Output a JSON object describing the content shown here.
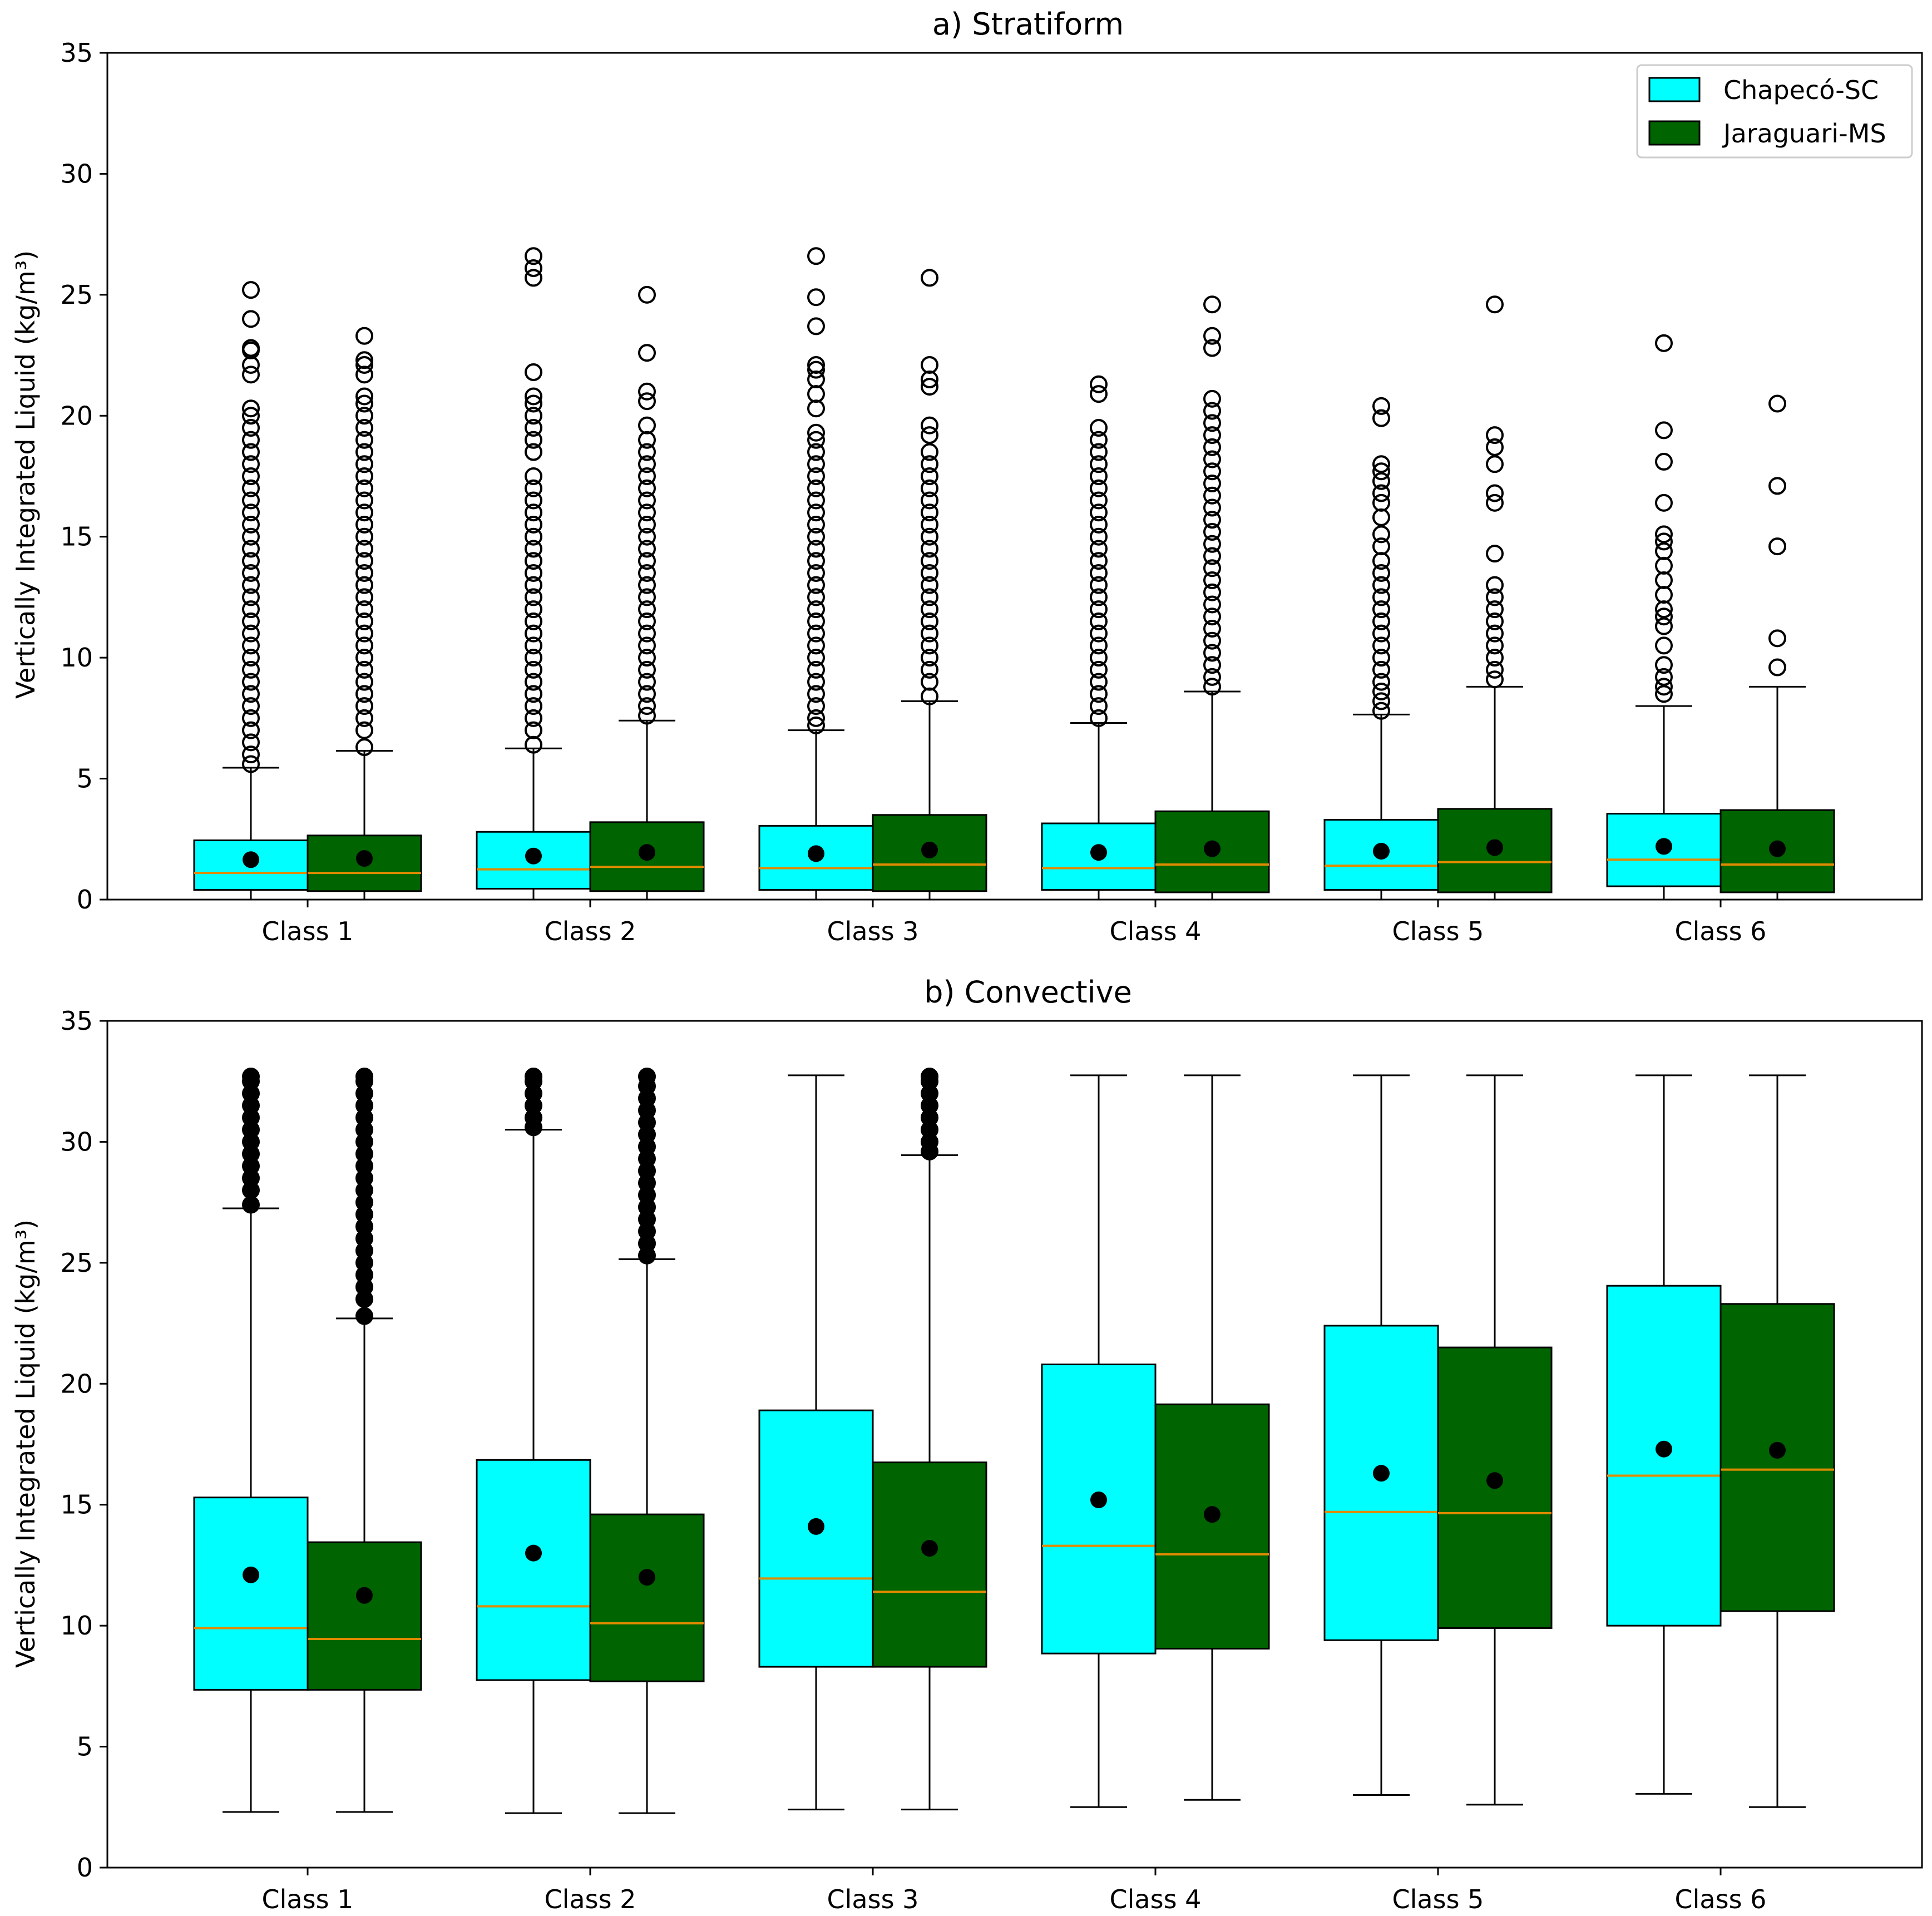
{
  "chart_data": [
    {
      "type": "box",
      "title": "a) Stratiform",
      "ylabel": "Vertically Integrated Liquid (kg/m³)",
      "xlabel": "",
      "ylim": [
        0,
        35
      ],
      "yticks": [
        0,
        5,
        10,
        15,
        20,
        25,
        30,
        35
      ],
      "categories": [
        "Class 1",
        "Class 2",
        "Class 3",
        "Class 4",
        "Class 5",
        "Class 6"
      ],
      "legend": "top-right",
      "series": [
        {
          "name": "Chapecó-SC",
          "color": "#00ffff",
          "boxes": [
            {
              "min": 0.0,
              "q1": 0.4,
              "median": 1.1,
              "q3": 2.45,
              "max": 5.45,
              "mean": 1.65,
              "fliers": [
                5.6,
                6,
                6.5,
                7,
                7.5,
                8,
                8.5,
                9,
                9.5,
                10,
                10.5,
                11,
                11.5,
                12,
                12.5,
                13,
                13.5,
                14,
                14.5,
                15,
                15.5,
                16,
                16.5,
                17,
                17.5,
                18,
                18.5,
                19,
                19.5,
                20,
                20.3,
                21.7,
                22.1,
                22.7,
                22.8,
                24,
                25.2
              ]
            },
            {
              "min": 0.0,
              "q1": 0.45,
              "median": 1.25,
              "q3": 2.8,
              "max": 6.25,
              "mean": 1.8,
              "fliers": [
                6.4,
                7,
                7.5,
                8,
                8.5,
                9,
                9.5,
                10,
                10.5,
                11,
                11.5,
                12,
                12.5,
                13,
                13.5,
                14,
                14.5,
                15,
                15.5,
                16,
                16.5,
                17,
                17.5,
                18.5,
                19,
                19.5,
                20,
                20.5,
                20.8,
                21.8,
                25.7,
                26.1,
                26.6
              ]
            },
            {
              "min": 0.0,
              "q1": 0.4,
              "median": 1.3,
              "q3": 3.05,
              "max": 7.0,
              "mean": 1.9,
              "fliers": [
                7.2,
                7.5,
                8,
                8.5,
                9,
                9.5,
                10,
                10.5,
                11,
                11.5,
                12,
                12.5,
                13,
                13.5,
                14,
                14.5,
                15,
                15.5,
                16,
                16.5,
                17,
                17.5,
                18,
                18.5,
                19,
                19.3,
                20.3,
                20.9,
                21.5,
                21.9,
                22.1,
                23.7,
                24.9,
                26.6
              ]
            },
            {
              "min": 0.0,
              "q1": 0.4,
              "median": 1.3,
              "q3": 3.15,
              "max": 7.3,
              "mean": 1.95,
              "fliers": [
                7.5,
                8,
                8.5,
                9,
                9.5,
                10,
                10.5,
                11,
                11.5,
                12,
                12.5,
                13,
                13.5,
                14,
                14.5,
                15,
                15.5,
                16,
                16.5,
                17,
                17.5,
                18,
                18.5,
                19,
                19.5,
                20.9,
                21.3
              ]
            },
            {
              "min": 0.0,
              "q1": 0.4,
              "median": 1.4,
              "q3": 3.3,
              "max": 7.65,
              "mean": 2.0,
              "fliers": [
                7.8,
                8.2,
                8.6,
                9,
                9.5,
                10,
                10.5,
                11,
                11.5,
                12,
                12.5,
                13,
                13.5,
                14,
                14.6,
                15.1,
                15.8,
                16.4,
                16.8,
                17.3,
                17.7,
                18,
                19.9,
                20.4
              ]
            },
            {
              "min": 0.0,
              "q1": 0.55,
              "median": 1.65,
              "q3": 3.55,
              "max": 8.0,
              "mean": 2.2,
              "fliers": [
                8.5,
                8.8,
                9.2,
                9.7,
                10.5,
                11.3,
                11.7,
                12,
                12.6,
                13.2,
                13.8,
                14.4,
                14.8,
                15.1,
                16.4,
                18.1,
                19.4,
                23.0
              ]
            }
          ]
        },
        {
          "name": "Jaraguari-MS",
          "color": "#006400",
          "boxes": [
            {
              "min": 0.0,
              "q1": 0.35,
              "median": 1.1,
              "q3": 2.65,
              "max": 6.15,
              "mean": 1.7,
              "fliers": [
                6.3,
                7,
                7.5,
                8,
                8.5,
                9,
                9.5,
                10,
                10.5,
                11,
                11.5,
                12,
                12.5,
                13,
                13.5,
                14,
                14.5,
                15,
                15.5,
                16,
                16.5,
                17,
                17.5,
                18,
                18.5,
                19,
                19.5,
                20,
                20.5,
                20.8,
                21.7,
                22.1,
                22.3,
                23.3
              ]
            },
            {
              "min": 0.0,
              "q1": 0.35,
              "median": 1.35,
              "q3": 3.2,
              "max": 7.4,
              "mean": 1.95,
              "fliers": [
                7.6,
                8,
                8.5,
                9,
                9.5,
                10,
                10.5,
                11,
                11.5,
                12,
                12.5,
                13,
                13.5,
                14,
                14.5,
                15,
                15.5,
                16,
                16.5,
                17,
                17.5,
                18,
                18.5,
                19,
                19.6,
                20.6,
                21,
                22.6,
                25
              ]
            },
            {
              "min": 0.0,
              "q1": 0.35,
              "median": 1.45,
              "q3": 3.5,
              "max": 8.2,
              "mean": 2.05,
              "fliers": [
                8.4,
                9,
                9.5,
                10,
                10.5,
                11,
                11.5,
                12,
                12.5,
                13,
                13.5,
                14,
                14.5,
                15,
                15.5,
                16,
                16.5,
                17,
                17.5,
                18,
                18.5,
                19.2,
                19.6,
                21.2,
                21.5,
                22.1,
                25.7
              ]
            },
            {
              "min": 0.0,
              "q1": 0.3,
              "median": 1.45,
              "q3": 3.65,
              "max": 8.6,
              "mean": 2.1,
              "fliers": [
                8.8,
                9.2,
                9.7,
                10.2,
                10.7,
                11.2,
                11.7,
                12.2,
                12.7,
                13.2,
                13.7,
                14.2,
                14.7,
                15.2,
                15.7,
                16.2,
                16.7,
                17.2,
                17.7,
                18.2,
                18.7,
                19.2,
                19.7,
                20.2,
                20.7,
                22.8,
                23.3,
                24.6
              ]
            },
            {
              "min": 0.0,
              "q1": 0.3,
              "median": 1.55,
              "q3": 3.75,
              "max": 8.8,
              "mean": 2.15,
              "fliers": [
                9.1,
                9.5,
                10,
                10.5,
                11,
                11.5,
                12,
                12.5,
                13,
                14.3,
                16.4,
                16.8,
                18,
                18.7,
                19.2,
                24.6
              ]
            },
            {
              "min": 0.0,
              "q1": 0.3,
              "median": 1.45,
              "q3": 3.7,
              "max": 8.8,
              "mean": 2.1,
              "fliers": [
                9.6,
                10.8,
                14.6,
                17.1,
                20.5
              ]
            }
          ]
        }
      ]
    },
    {
      "type": "box",
      "title": "b) Convective",
      "ylabel": "Vertically Integrated Liquid (kg/m³)",
      "xlabel": "",
      "ylim": [
        0,
        35
      ],
      "yticks": [
        0,
        5,
        10,
        15,
        20,
        25,
        30,
        35
      ],
      "categories": [
        "Class 1",
        "Class 2",
        "Class 3",
        "Class 4",
        "Class 5",
        "Class 6"
      ],
      "series": [
        {
          "name": "Chapecó-SC",
          "color": "#00ffff",
          "boxes": [
            {
              "min": 2.3,
              "q1": 7.35,
              "median": 9.9,
              "q3": 15.3,
              "max": 27.25,
              "mean": 12.1,
              "fliers": [
                27.4,
                28,
                28.5,
                29,
                29.5,
                30,
                30.5,
                31,
                31.5,
                32,
                32.5,
                32.7
              ]
            },
            {
              "min": 2.25,
              "q1": 7.75,
              "median": 10.8,
              "q3": 16.85,
              "max": 30.5,
              "mean": 13.0,
              "fliers": [
                30.6,
                31,
                31.5,
                32,
                32.5,
                32.7
              ]
            },
            {
              "min": 2.4,
              "q1": 8.3,
              "median": 11.95,
              "q3": 18.9,
              "max": 32.75,
              "mean": 14.1,
              "fliers": []
            },
            {
              "min": 2.5,
              "q1": 8.85,
              "median": 13.3,
              "q3": 20.8,
              "max": 32.75,
              "mean": 15.2,
              "fliers": []
            },
            {
              "min": 3.0,
              "q1": 9.4,
              "median": 14.7,
              "q3": 22.4,
              "max": 32.75,
              "mean": 16.3,
              "fliers": []
            },
            {
              "min": 3.05,
              "q1": 10.0,
              "median": 16.2,
              "q3": 24.05,
              "max": 32.75,
              "mean": 17.3,
              "fliers": []
            }
          ]
        },
        {
          "name": "Jaraguari-MS",
          "color": "#006400",
          "boxes": [
            {
              "min": 2.3,
              "q1": 7.35,
              "median": 9.45,
              "q3": 13.45,
              "max": 22.7,
              "mean": 11.25,
              "fliers": [
                22.8,
                23.5,
                24,
                24.5,
                25,
                25.5,
                26,
                26.5,
                27,
                27.5,
                28,
                28.5,
                29,
                29.5,
                30,
                30.5,
                31,
                31.5,
                32,
                32.5,
                32.7
              ]
            },
            {
              "min": 2.25,
              "q1": 7.7,
              "median": 10.1,
              "q3": 14.6,
              "max": 25.15,
              "mean": 12.0,
              "fliers": [
                25.3,
                25.8,
                26.3,
                26.8,
                27.3,
                27.8,
                28.3,
                28.8,
                29.3,
                29.8,
                30.3,
                30.8,
                31.3,
                31.8,
                32.3,
                32.7
              ]
            },
            {
              "min": 2.4,
              "q1": 8.3,
              "median": 11.4,
              "q3": 16.75,
              "max": 29.45,
              "mean": 13.2,
              "fliers": [
                29.6,
                30,
                30.5,
                31,
                31.5,
                32,
                32.5,
                32.7
              ]
            },
            {
              "min": 2.8,
              "q1": 9.05,
              "median": 12.95,
              "q3": 19.15,
              "max": 32.75,
              "mean": 14.6,
              "fliers": []
            },
            {
              "min": 2.6,
              "q1": 9.9,
              "median": 14.65,
              "q3": 21.5,
              "max": 32.75,
              "mean": 16.0,
              "fliers": []
            },
            {
              "min": 2.5,
              "q1": 10.6,
              "median": 16.45,
              "q3": 23.3,
              "max": 32.75,
              "mean": 17.25,
              "fliers": []
            }
          ]
        }
      ]
    }
  ]
}
